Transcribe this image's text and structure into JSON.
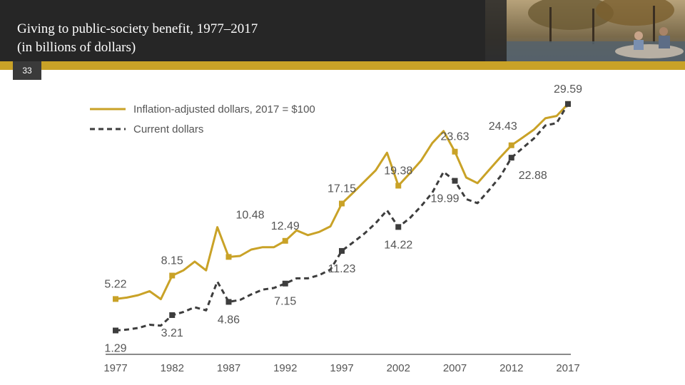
{
  "slide": {
    "title_line1": "Giving to public-society benefit, 1977–2017",
    "title_line2": "(in billions of dollars)",
    "number": "33"
  },
  "colors": {
    "header_bg": "#262626",
    "accent": "#c9a227",
    "gold_line": "#c9a227",
    "dark_line": "#3d3d3d",
    "axis": "#666666",
    "label": "#555555"
  },
  "chart_data": {
    "type": "line",
    "title": "Giving to public-society benefit, 1977–2017 (in billions of dollars)",
    "xlabel": "",
    "ylabel": "",
    "x": [
      1977,
      1978,
      1979,
      1980,
      1981,
      1982,
      1983,
      1984,
      1985,
      1986,
      1987,
      1988,
      1989,
      1990,
      1991,
      1992,
      1993,
      1994,
      1995,
      1996,
      1997,
      1998,
      1999,
      2000,
      2001,
      2002,
      2003,
      2004,
      2005,
      2006,
      2007,
      2008,
      2009,
      2010,
      2011,
      2012,
      2013,
      2014,
      2015,
      2016,
      2017
    ],
    "xticks": [
      1977,
      1982,
      1987,
      1992,
      1997,
      2002,
      2007,
      2012,
      2017
    ],
    "ylim": [
      0,
      31
    ],
    "series": [
      {
        "name": "Inflation-adjusted dollars, 2017 = $100",
        "style": "solid",
        "values": [
          5.22,
          5.4,
          5.7,
          6.2,
          5.2,
          8.15,
          8.8,
          9.9,
          8.8,
          14.2,
          10.48,
          10.6,
          11.4,
          11.7,
          11.7,
          12.49,
          13.8,
          13.2,
          13.6,
          14.3,
          17.15,
          18.5,
          19.9,
          21.3,
          23.5,
          19.38,
          20.9,
          22.5,
          24.7,
          26.2,
          23.63,
          20.4,
          19.7,
          21.3,
          22.9,
          24.43,
          25.4,
          26.4,
          27.8,
          28.1,
          29.59
        ],
        "markers": [
          [
            1977,
            5.22
          ],
          [
            1982,
            8.15
          ],
          [
            1987,
            10.48
          ],
          [
            1992,
            12.49
          ],
          [
            1997,
            17.15
          ],
          [
            2002,
            19.38
          ],
          [
            2007,
            23.63
          ],
          [
            2012,
            24.43
          ],
          [
            2017,
            29.59
          ]
        ]
      },
      {
        "name": "Current dollars",
        "style": "dashed",
        "values": [
          1.29,
          1.4,
          1.6,
          2.0,
          1.9,
          3.21,
          3.6,
          4.2,
          3.8,
          7.4,
          4.86,
          5.1,
          5.8,
          6.4,
          6.6,
          7.15,
          7.8,
          7.8,
          8.2,
          8.9,
          11.23,
          12.3,
          13.4,
          14.7,
          16.3,
          14.22,
          15.3,
          16.8,
          18.5,
          21.1,
          19.99,
          17.7,
          17.2,
          18.8,
          20.5,
          22.88,
          24.1,
          25.3,
          26.9,
          27.2,
          29.59
        ],
        "markers": [
          [
            1977,
            1.29
          ],
          [
            1982,
            3.21
          ],
          [
            1987,
            4.86
          ],
          [
            1992,
            7.15
          ],
          [
            1997,
            11.23
          ],
          [
            2002,
            14.22
          ],
          [
            2007,
            19.99
          ],
          [
            2012,
            22.88
          ],
          [
            2017,
            29.59
          ]
        ]
      }
    ],
    "data_labels": [
      {
        "series": 0,
        "x": 1977,
        "text": "5.22",
        "pos": "above"
      },
      {
        "series": 0,
        "x": 1982,
        "text": "8.15",
        "pos": "above"
      },
      {
        "series": 0,
        "x": 1987,
        "text": "10.48",
        "pos": "right"
      },
      {
        "series": 0,
        "x": 1992,
        "text": "12.49",
        "pos": "above"
      },
      {
        "series": 0,
        "x": 1997,
        "text": "17.15",
        "pos": "above"
      },
      {
        "series": 0,
        "x": 2002,
        "text": "19.38",
        "pos": "above"
      },
      {
        "series": 0,
        "x": 2007,
        "text": "23.63",
        "pos": "above"
      },
      {
        "series": 0,
        "x": 2012,
        "text": "24.43",
        "pos": "above"
      },
      {
        "series": 0,
        "x": 2017,
        "text": "29.59",
        "pos": "above"
      },
      {
        "series": 1,
        "x": 1977,
        "text": "1.29",
        "pos": "below"
      },
      {
        "series": 1,
        "x": 1982,
        "text": "3.21",
        "pos": "below"
      },
      {
        "series": 1,
        "x": 1987,
        "text": "4.86",
        "pos": "below"
      },
      {
        "series": 1,
        "x": 1992,
        "text": "7.15",
        "pos": "below"
      },
      {
        "series": 1,
        "x": 1997,
        "text": "11.23",
        "pos": "below"
      },
      {
        "series": 1,
        "x": 2002,
        "text": "14.22",
        "pos": "below"
      },
      {
        "series": 1,
        "x": 2007,
        "text": "19.99",
        "pos": "below"
      },
      {
        "series": 1,
        "x": 2012,
        "text": "22.88",
        "pos": "below"
      }
    ],
    "legend_position": "top-left"
  }
}
